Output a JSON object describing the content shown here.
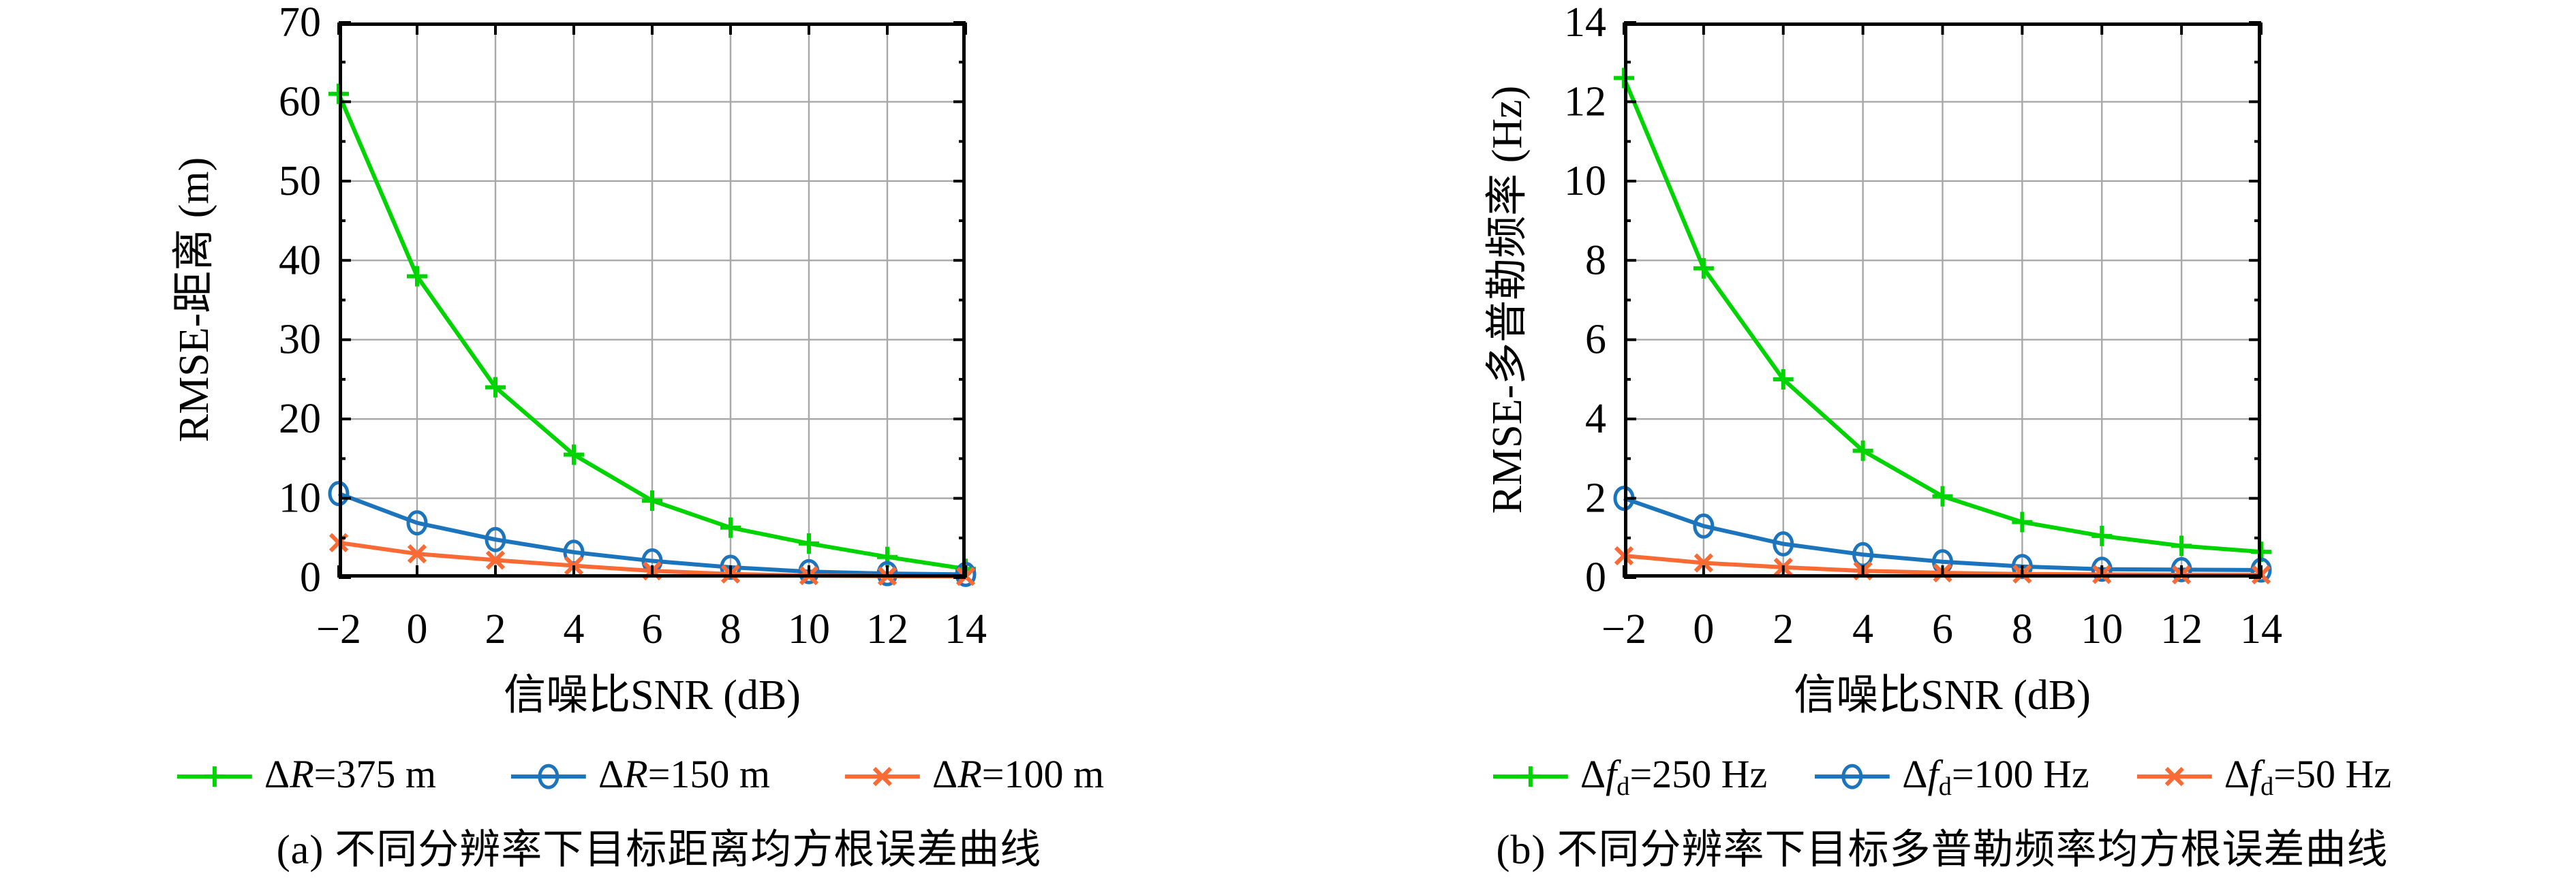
{
  "page": {
    "background": "#ffffff"
  },
  "colors": {
    "green": "#00d400",
    "blue": "#1c75bc",
    "orange": "#f96a35",
    "grid": "#a8a8a8",
    "axis": "#000000"
  },
  "chart_data": [
    {
      "id": "a",
      "type": "line",
      "title": "",
      "xlabel": "信噪比SNR (dB)",
      "ylabel": "RMSE-距离 (m)",
      "caption": "(a) 不同分辨率下目标距离均方根误差曲线",
      "x": [
        -2,
        0,
        2,
        4,
        6,
        8,
        10,
        12,
        14
      ],
      "xlim": [
        -2,
        14
      ],
      "ylim": [
        0,
        70
      ],
      "xticks": [
        -2,
        0,
        2,
        4,
        6,
        8,
        10,
        12,
        14
      ],
      "yticks": [
        0,
        10,
        20,
        30,
        40,
        50,
        60,
        70
      ],
      "y_minor_step": 5,
      "grid": true,
      "legend_position": "below",
      "series": [
        {
          "name": "ΔR=375 m",
          "marker": "plus",
          "color_key": "green",
          "label_parts": {
            "prefix": "Δ",
            "var": "R",
            "rest": "=375 m"
          },
          "values": [
            61,
            38,
            24,
            15.5,
            9.7,
            6.3,
            4.3,
            2.6,
            1.1
          ]
        },
        {
          "name": "ΔR=150 m",
          "marker": "circle",
          "color_key": "blue",
          "label_parts": {
            "prefix": "Δ",
            "var": "R",
            "rest": "=150 m"
          },
          "values": [
            10.6,
            6.9,
            4.8,
            3.2,
            2.1,
            1.3,
            0.75,
            0.5,
            0.4
          ]
        },
        {
          "name": "ΔR=100 m",
          "marker": "cross",
          "color_key": "orange",
          "label_parts": {
            "prefix": "Δ",
            "var": "R",
            "rest": "=100 m"
          },
          "values": [
            4.4,
            3.0,
            2.2,
            1.5,
            0.85,
            0.45,
            0.25,
            0.18,
            0.15
          ]
        }
      ]
    },
    {
      "id": "b",
      "type": "line",
      "title": "",
      "xlabel": "信噪比SNR (dB)",
      "ylabel": "RMSE-多普勒频率 (Hz)",
      "caption": "(b) 不同分辨率下目标多普勒频率均方根误差曲线",
      "x": [
        -2,
        0,
        2,
        4,
        6,
        8,
        10,
        12,
        14
      ],
      "xlim": [
        -2,
        14
      ],
      "ylim": [
        0,
        14
      ],
      "xticks": [
        -2,
        0,
        2,
        4,
        6,
        8,
        10,
        12,
        14
      ],
      "yticks": [
        0,
        2,
        4,
        6,
        8,
        10,
        12,
        14
      ],
      "y_minor_step": 1,
      "grid": true,
      "legend_position": "below",
      "series": [
        {
          "name": "Δfd=250 Hz",
          "marker": "plus",
          "color_key": "green",
          "label_parts": {
            "prefix": "Δ",
            "var": "f",
            "sub": "d",
            "rest": "=250 Hz"
          },
          "values": [
            12.6,
            7.8,
            5.0,
            3.2,
            2.05,
            1.4,
            1.05,
            0.8,
            0.65
          ]
        },
        {
          "name": "Δfd=100 Hz",
          "marker": "circle",
          "color_key": "blue",
          "label_parts": {
            "prefix": "Δ",
            "var": "f",
            "sub": "d",
            "rest": "=100 Hz"
          },
          "values": [
            2.0,
            1.3,
            0.85,
            0.58,
            0.4,
            0.28,
            0.21,
            0.2,
            0.19
          ]
        },
        {
          "name": "Δfd=50 Hz",
          "marker": "cross",
          "color_key": "orange",
          "label_parts": {
            "prefix": "Δ",
            "var": "f",
            "sub": "d",
            "rest": "=50 Hz"
          },
          "values": [
            0.55,
            0.37,
            0.26,
            0.17,
            0.12,
            0.09,
            0.08,
            0.07,
            0.07
          ]
        }
      ]
    }
  ]
}
